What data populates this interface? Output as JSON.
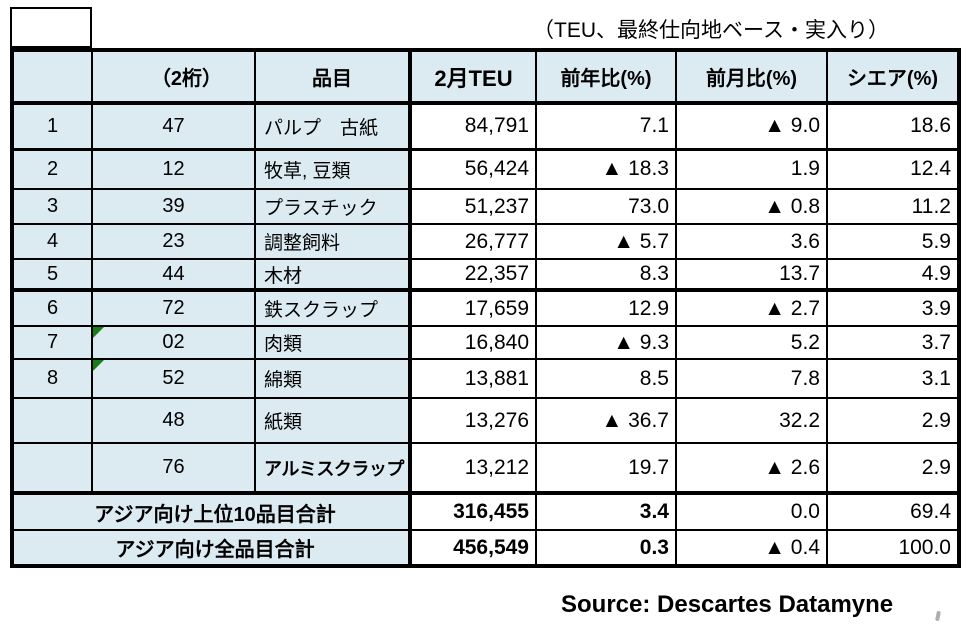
{
  "unit_note": "（TEU、最終仕向地ベース・実入り）",
  "source": "Source: Descartes Datamyne",
  "colors": {
    "cell_fill_blue": "#dcebf2",
    "border_black": "#000000",
    "flag_green": "#177d17",
    "negative_marker": "▲"
  },
  "table": {
    "headers": [
      "",
      "（2桁）",
      "品目",
      "2月TEU",
      "前年比(%)",
      "前月比(%)",
      "シエア(%)"
    ],
    "rows": [
      {
        "rank": "1",
        "code": "47",
        "flag": false,
        "item": "パルプ　古紙",
        "teu": "84,791",
        "yoy": "7.1",
        "mom": "▲ 9.0",
        "share": "18.6"
      },
      {
        "rank": "2",
        "code": "12",
        "flag": false,
        "item": "牧草, 豆類",
        "teu": "56,424",
        "yoy": "▲ 18.3",
        "mom": "1.9",
        "share": "12.4"
      },
      {
        "rank": "3",
        "code": "39",
        "flag": false,
        "item": "プラスチック",
        "teu": "51,237",
        "yoy": "73.0",
        "mom": "▲ 0.8",
        "share": "11.2"
      },
      {
        "rank": "4",
        "code": "23",
        "flag": false,
        "item": "調整飼料",
        "teu": "26,777",
        "yoy": "▲ 5.7",
        "mom": "3.6",
        "share": "5.9"
      },
      {
        "rank": "5",
        "code": "44",
        "flag": false,
        "item": "木材",
        "teu": "22,357",
        "yoy": "8.3",
        "mom": "13.7",
        "share": "4.9"
      },
      {
        "rank": "6",
        "code": "72",
        "flag": false,
        "item": "鉄スクラップ",
        "teu": "17,659",
        "yoy": "12.9",
        "mom": "▲ 2.7",
        "share": "3.9"
      },
      {
        "rank": "7",
        "code": "02",
        "flag": true,
        "item": "肉類",
        "teu": "16,840",
        "yoy": "▲ 9.3",
        "mom": "5.2",
        "share": "3.7"
      },
      {
        "rank": "8",
        "code": "52",
        "flag": true,
        "item": "綿類",
        "teu": "13,881",
        "yoy": "8.5",
        "mom": "7.8",
        "share": "3.1"
      },
      {
        "rank": "",
        "code": "48",
        "flag": false,
        "item": "紙類",
        "teu": "13,276",
        "yoy": "▲ 36.7",
        "mom": "32.2",
        "share": "2.9"
      },
      {
        "rank": "",
        "code": "76",
        "flag": false,
        "item": "アルミスクラップ",
        "teu": "13,212",
        "yoy": "19.7",
        "mom": "▲ 2.6",
        "share": "2.9"
      }
    ],
    "totals": [
      {
        "label": "アジア向け上位10品目合計",
        "teu": "316,455",
        "yoy": "3.4",
        "mom": "0.0",
        "share": "69.4"
      },
      {
        "label": "アジア向け全品目合計",
        "teu": "456,549",
        "yoy": "0.3",
        "mom": "▲ 0.4",
        "share": "100.0"
      }
    ]
  }
}
